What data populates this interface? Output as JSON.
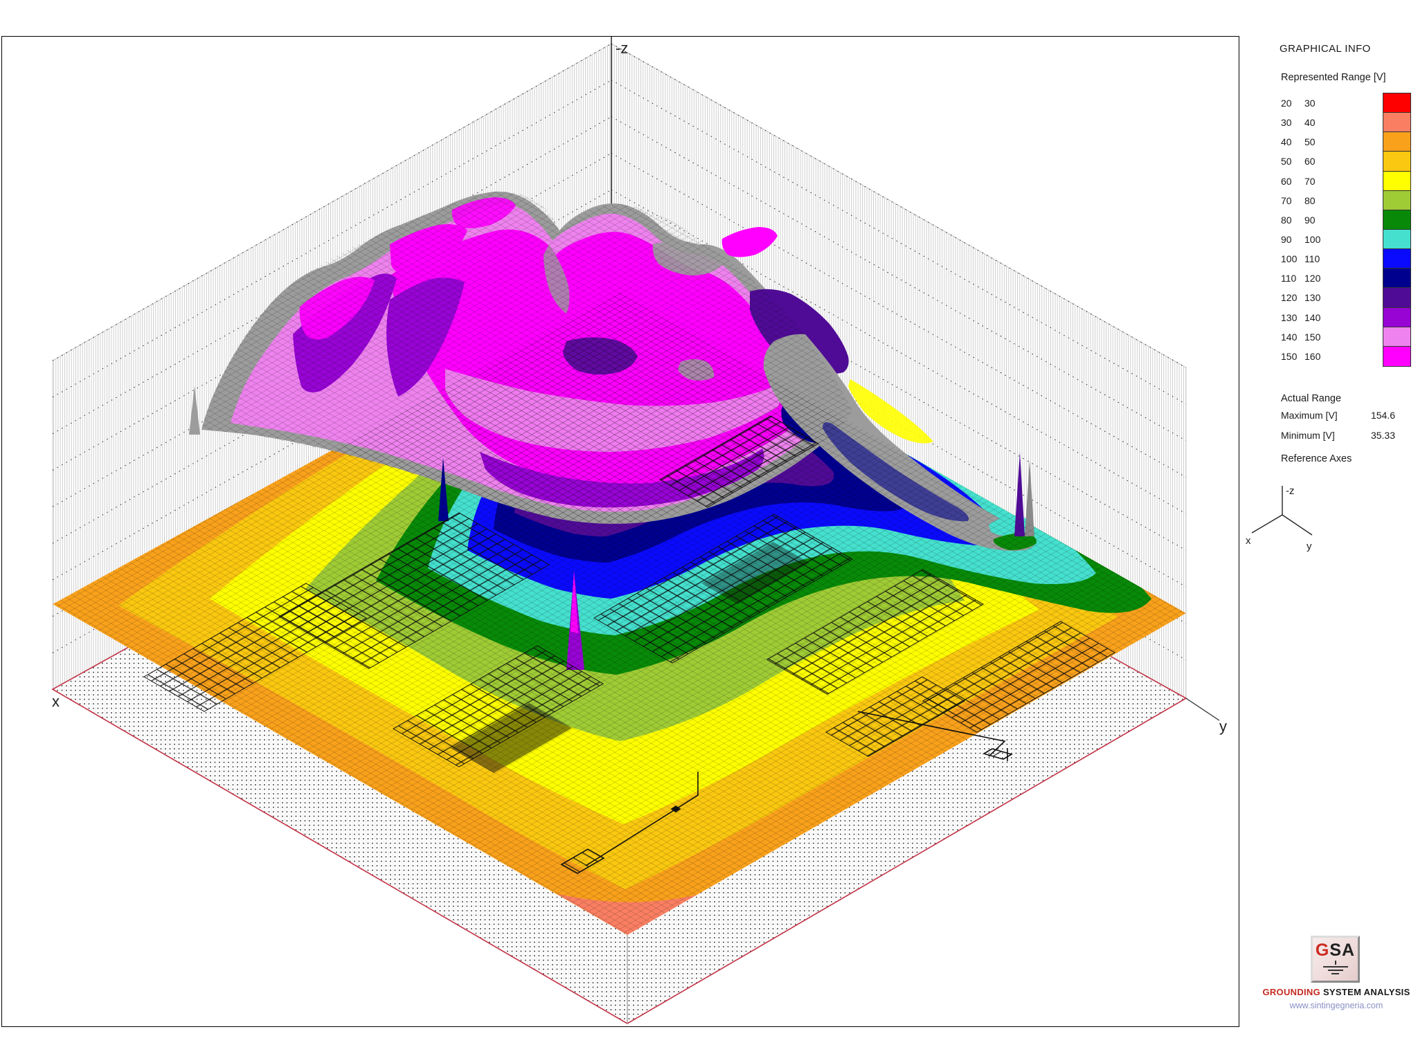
{
  "window": {
    "background": "#FFFFFF"
  },
  "plot": {
    "axis_z_label": "-z",
    "axis_x_label": "x",
    "axis_y_label": "y",
    "frame_color": "#000000",
    "base_border_color": "#C23246",
    "wireframe_color": "#9C9C9C",
    "wall_hatch_color": "#C9C9C9",
    "electrode_color": "#101010"
  },
  "info_panel": {
    "title": "GRAPHICAL INFO",
    "represented_range_label": "Represented Range [V]",
    "legend_rows": [
      {
        "from": "20",
        "to": "30",
        "color": "#FF0000"
      },
      {
        "from": "30",
        "to": "40",
        "color": "#FA7F62"
      },
      {
        "from": "40",
        "to": "50",
        "color": "#F9A11B"
      },
      {
        "from": "50",
        "to": "60",
        "color": "#FAC810"
      },
      {
        "from": "60",
        "to": "70",
        "color": "#FFFF00"
      },
      {
        "from": "70",
        "to": "80",
        "color": "#9FCB35"
      },
      {
        "from": "80",
        "to": "90",
        "color": "#088A08"
      },
      {
        "from": "90",
        "to": "100",
        "color": "#45E0CE"
      },
      {
        "from": "100",
        "to": "110",
        "color": "#0A0AFF"
      },
      {
        "from": "110",
        "to": "120",
        "color": "#00008F"
      },
      {
        "from": "120",
        "to": "130",
        "color": "#4F0B96"
      },
      {
        "from": "130",
        "to": "140",
        "color": "#9704D4"
      },
      {
        "from": "140",
        "to": "150",
        "color": "#EE82EE"
      },
      {
        "from": "150",
        "to": "160",
        "color": "#FF00FF"
      }
    ],
    "actual_range_label": "Actual Range",
    "maximum_label": "Maximum [V]",
    "maximum_value": "154.6",
    "minimum_label": "Minimum [V]",
    "minimum_value": "35.33",
    "reference_axes_label": "Reference Axes",
    "ref_axis_z": "-z",
    "ref_axis_x": "x",
    "ref_axis_y": "y",
    "logo_text": "GSA",
    "brand_red": "GROUNDING",
    "brand_rest": " SYSTEM ANALYSIS",
    "website": "www.sintingegneria.com"
  },
  "chart_data": {
    "type": "surface",
    "projection": "3d-isometric",
    "axes_labels": {
      "x": "x",
      "y": "y",
      "z": "-z"
    },
    "value_unit": "V",
    "legend_position": "right",
    "grid": "hatched back walls with dotted level lines; dotted base plane with red border",
    "bands": [
      {
        "min": 20,
        "max": 30,
        "color": "#FF0000"
      },
      {
        "min": 30,
        "max": 40,
        "color": "#FA7F62"
      },
      {
        "min": 40,
        "max": 50,
        "color": "#F9A11B"
      },
      {
        "min": 50,
        "max": 60,
        "color": "#FAC810"
      },
      {
        "min": 60,
        "max": 70,
        "color": "#FFFF00"
      },
      {
        "min": 70,
        "max": 80,
        "color": "#9FCB35"
      },
      {
        "min": 80,
        "max": 90,
        "color": "#088A08"
      },
      {
        "min": 90,
        "max": 100,
        "color": "#45E0CE"
      },
      {
        "min": 100,
        "max": 110,
        "color": "#0A0AFF"
      },
      {
        "min": 110,
        "max": 120,
        "color": "#00008F"
      },
      {
        "min": 120,
        "max": 130,
        "color": "#4F0B96"
      },
      {
        "min": 130,
        "max": 140,
        "color": "#9704D4"
      },
      {
        "min": 140,
        "max": 150,
        "color": "#EE82EE"
      },
      {
        "min": 150,
        "max": 160,
        "color": "#FF00FF"
      }
    ],
    "actual_range": {
      "maximum_v": 154.6,
      "minimum_v": 35.33
    }
  }
}
